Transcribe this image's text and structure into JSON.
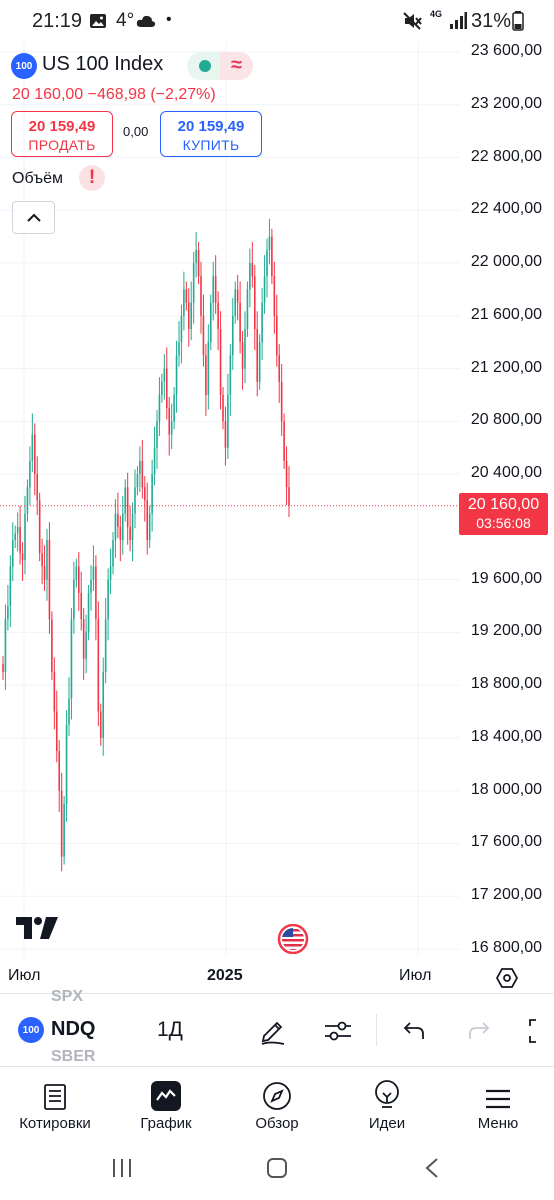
{
  "status_bar": {
    "time": "21:19",
    "temperature": "4°",
    "network": "4G",
    "battery": "31%"
  },
  "instrument": {
    "badge": "100",
    "name": "US 100 Index",
    "change": "20 160,00  −468,98 (−2,27%)"
  },
  "trade": {
    "sell_price": "20 159,49",
    "sell_label": "ПРОДАТЬ",
    "spread": "0,00",
    "buy_price": "20 159,49",
    "buy_label": "КУПИТЬ"
  },
  "indicators": {
    "volume_label": "Объём",
    "warning": "!"
  },
  "price_scale": [
    "23 600,00",
    "23 200,00",
    "22 800,00",
    "22 400,00",
    "22 000,00",
    "21 600,00",
    "21 200,00",
    "20 800,00",
    "20 400,00",
    "19 600,00",
    "19 200,00",
    "18 800,00",
    "18 400,00",
    "18 000,00",
    "17 600,00",
    "17 200,00",
    "16 800,00"
  ],
  "current_price": {
    "value": "20 160,00",
    "countdown": "03:56:08",
    "color": "#f23645"
  },
  "time_axis": [
    {
      "label": "Июл",
      "bold": false
    },
    {
      "label": "2025",
      "bold": true
    },
    {
      "label": "Июл",
      "bold": false
    }
  ],
  "chart_data": {
    "type": "candlestick",
    "price_min": 16800,
    "price_max": 23600,
    "up_color": "#22ab94",
    "down_color": "#f23645",
    "closes": [
      18900,
      19300,
      19400,
      19700,
      19900,
      19950,
      20000,
      19800,
      19750,
      20100,
      20300,
      20500,
      20700,
      20400,
      20200,
      19800,
      19700,
      19600,
      19900,
      19300,
      18900,
      18600,
      18300,
      18000,
      17500,
      17900,
      18500,
      18700,
      19300,
      19600,
      19700,
      19500,
      19300,
      19000,
      19200,
      19500,
      19600,
      19700,
      19300,
      18600,
      18400,
      18900,
      19300,
      19600,
      19700,
      19900,
      20100,
      20000,
      19900,
      20100,
      20300,
      20000,
      19900,
      20100,
      20300,
      20400,
      20500,
      20300,
      20200,
      19900,
      20100,
      20400,
      20600,
      20800,
      21000,
      21100,
      21200,
      20900,
      20700,
      20800,
      21000,
      21300,
      21400,
      21600,
      21800,
      21700,
      21500,
      21700,
      22000,
      22100,
      21900,
      21600,
      21300,
      21000,
      21400,
      21700,
      21900,
      21700,
      21500,
      21000,
      20800,
      20600,
      21000,
      21300,
      21600,
      21800,
      21700,
      21400,
      21200,
      21500,
      21800,
      22000,
      21900,
      21500,
      21100,
      21400,
      21700,
      21900,
      22100,
      22200,
      21900,
      21600,
      21300,
      21100,
      20800,
      20500,
      20300,
      20160
    ],
    "last_close": 20160
  },
  "toolbar": {
    "ghost_above": "SPX",
    "ghost_below": "SBER",
    "badge": "100",
    "symbol": "NDQ",
    "interval": "1Д"
  },
  "bottom_nav": [
    {
      "label": "Котировки",
      "icon": "watchlist-icon"
    },
    {
      "label": "График",
      "icon": "chart-icon"
    },
    {
      "label": "Обзор",
      "icon": "compass-icon"
    },
    {
      "label": "Идеи",
      "icon": "lightbulb-icon"
    },
    {
      "label": "Меню",
      "icon": "menu-icon"
    }
  ]
}
